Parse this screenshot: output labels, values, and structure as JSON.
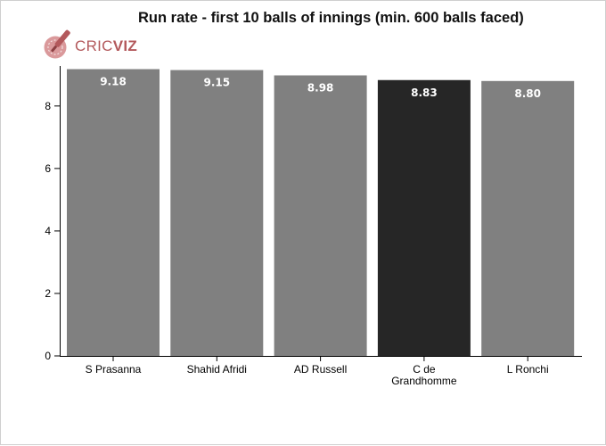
{
  "title": "Run rate - first 10 balls of innings (min. 600 balls faced)",
  "logo": {
    "part1": "CRIC",
    "part2": "VIZ",
    "icon": "cricket-bat-ball-icon",
    "color": "#b3595c"
  },
  "colors": {
    "bar": "#808080",
    "highlight": "#262626",
    "axis": "#000000",
    "label": "#ffffff"
  },
  "chart_data": {
    "type": "bar",
    "title": "Run rate - first 10 balls of innings (min. 600 balls faced)",
    "categories": [
      "S Prasanna",
      "Shahid Afridi",
      "AD Russell",
      "C de Grandhomme",
      "L Ronchi"
    ],
    "category_lines": [
      [
        "S Prasanna"
      ],
      [
        "Shahid Afridi"
      ],
      [
        "AD Russell"
      ],
      [
        "C de",
        "Grandhomme"
      ],
      [
        "L Ronchi"
      ]
    ],
    "values": [
      9.18,
      9.15,
      8.98,
      8.83,
      8.8
    ],
    "value_labels": [
      "9.18",
      "9.15",
      "8.98",
      "8.83",
      "8.80"
    ],
    "highlight_index": 3,
    "yticks": [
      0,
      2,
      4,
      6,
      8
    ],
    "ylim": [
      0,
      9.28
    ],
    "xlabel": "",
    "ylabel": "",
    "grid": false,
    "legend": "none"
  }
}
